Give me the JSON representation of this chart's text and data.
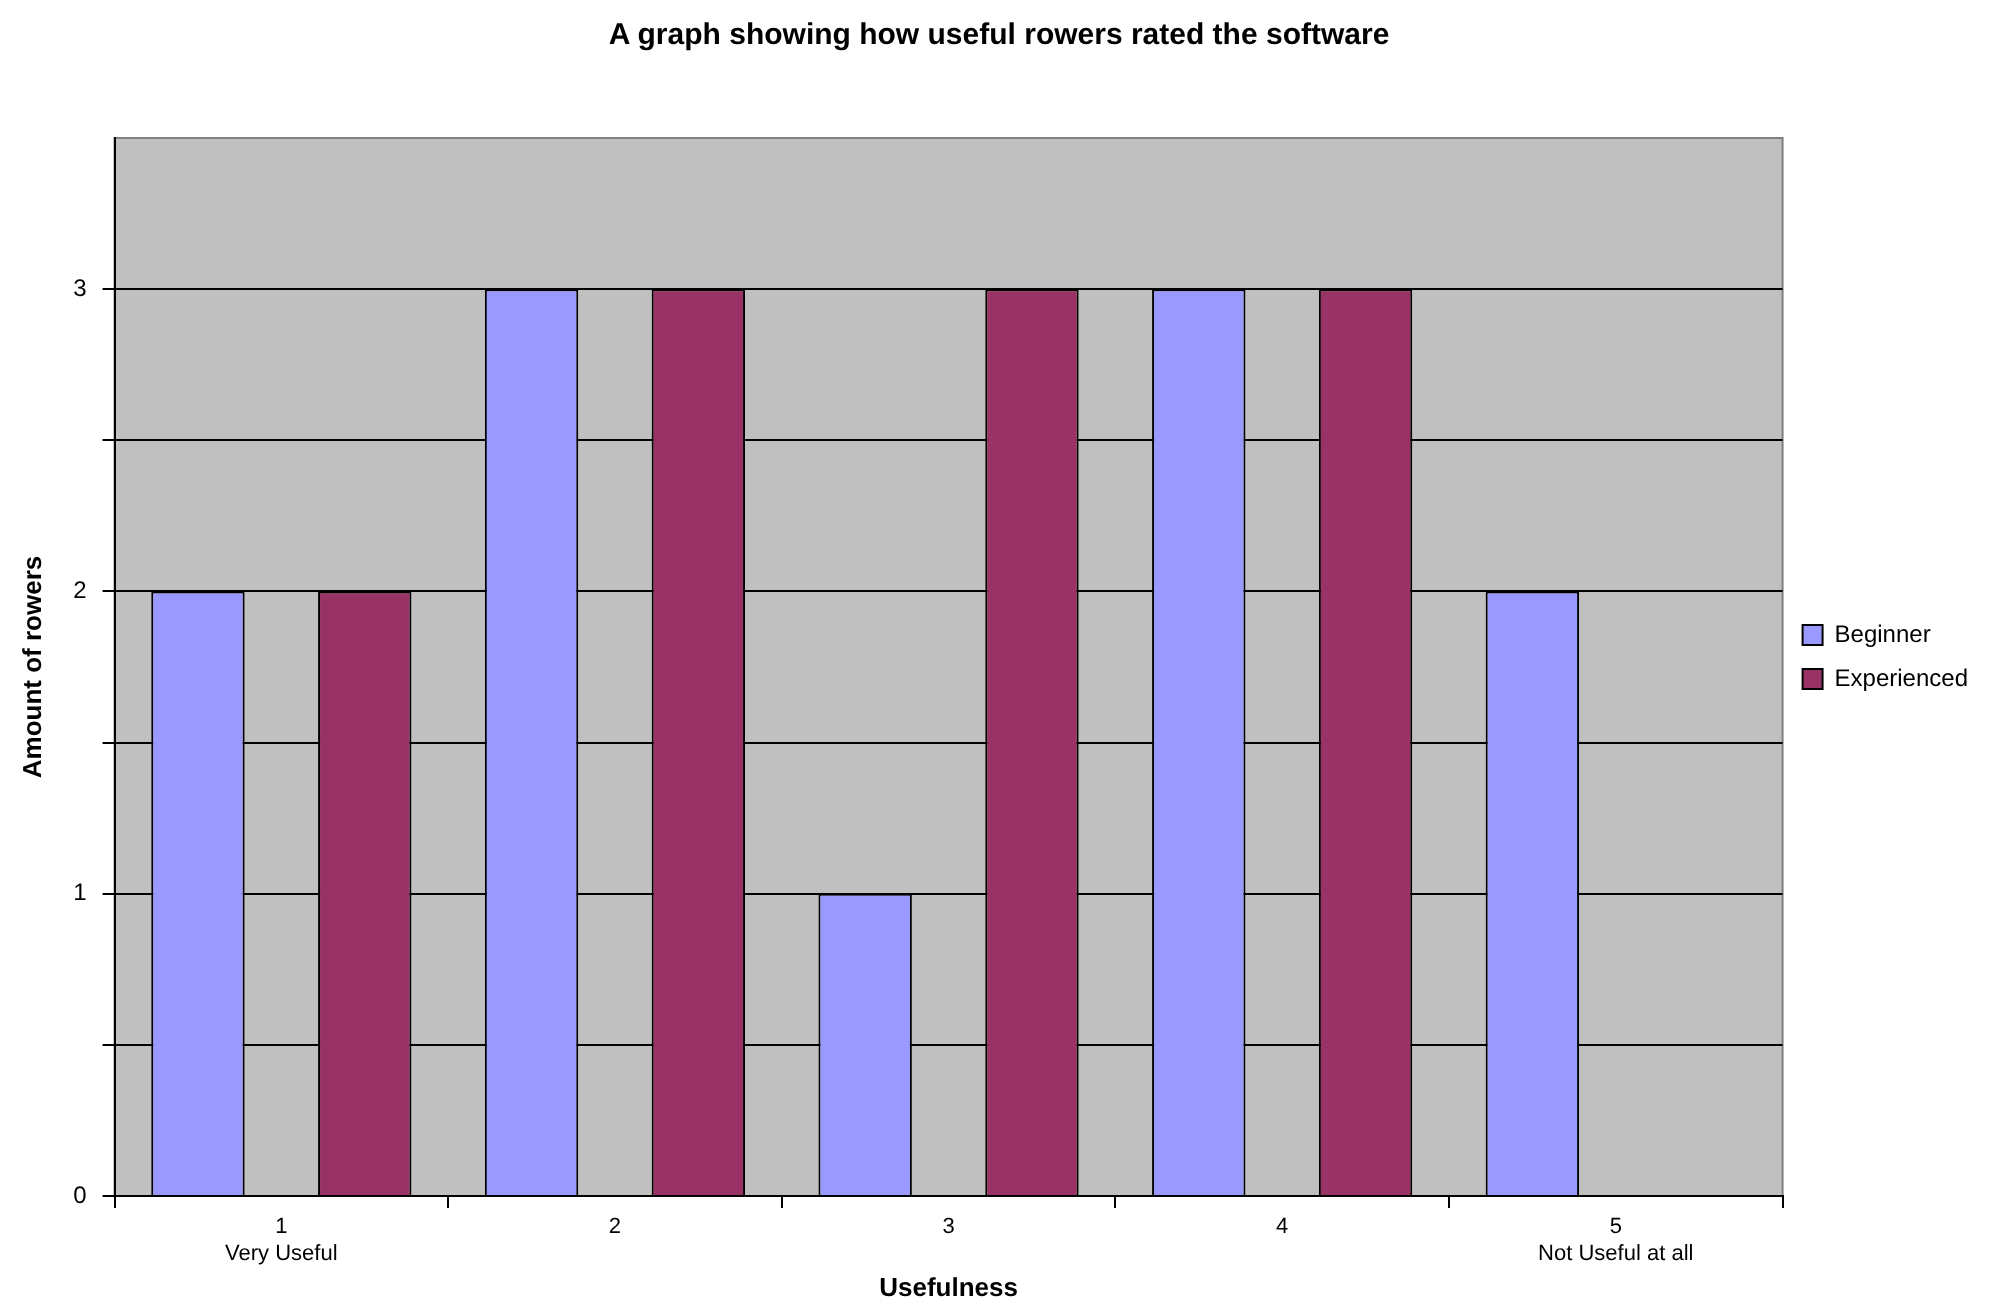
{
  "chart_data": {
    "type": "bar",
    "title": "A graph showing how useful rowers rated the software",
    "xlabel": "Usefulness",
    "ylabel": "Amount of rowers",
    "categories": [
      "1\nVery Useful",
      "2",
      "3",
      "4",
      "5\nNot Useful at all"
    ],
    "series": [
      {
        "name": "Beginner",
        "color": "#9999ff",
        "values": [
          2,
          3,
          1,
          3,
          2
        ]
      },
      {
        "name": "Experienced",
        "color": "#993366",
        "values": [
          2,
          3,
          3,
          3,
          0
        ]
      }
    ],
    "ylim": [
      0,
      3.5
    ],
    "yticks": [
      0,
      {
        "value": 0.5,
        "label": null
      },
      1,
      {
        "value": 1.5,
        "label": null
      },
      2,
      {
        "value": 2.5,
        "label": null
      },
      3,
      {
        "value": 3.5,
        "label": null
      }
    ],
    "grid": "y",
    "legend": "right"
  }
}
